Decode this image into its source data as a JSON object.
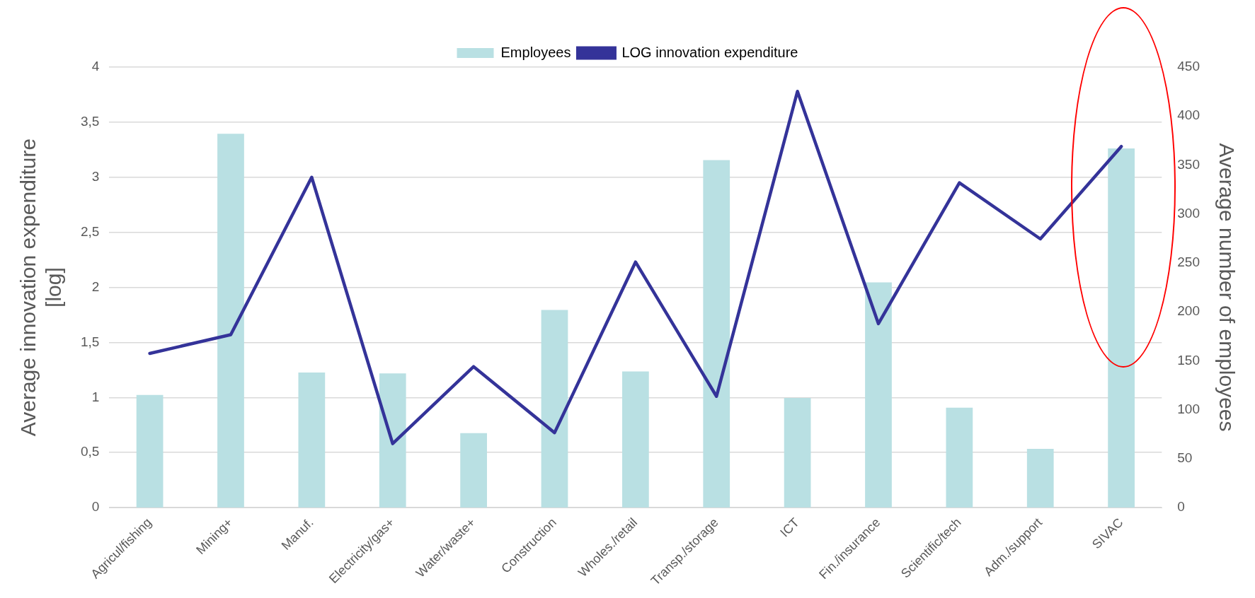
{
  "chart_data": {
    "type": "bar",
    "ylabel": "Average innovation expenditure [log]",
    "y2label": "Average number of employees",
    "categories": [
      "Agricul/fishing",
      "Mining+",
      "Manuf.",
      "Electricity/gas+",
      "Water/waste+",
      "Construction",
      "Wholes./retail",
      "Transp./storage",
      "ICT",
      "Fin./insurance",
      "Scientific/tech",
      "Adm./support",
      "SIVAC"
    ],
    "series": [
      {
        "name": "Employees",
        "axis": "y2",
        "color": "#b9e0e3",
        "values": [
          115,
          382,
          138,
          137,
          76,
          202,
          139,
          355,
          112,
          230,
          102,
          60,
          367
        ]
      },
      {
        "name": "LOG innovation expenditure",
        "type": "line",
        "color": "#343399",
        "values": [
          1.4,
          1.57,
          3.0,
          0.58,
          1.28,
          0.68,
          2.23,
          1.01,
          3.78,
          1.67,
          2.95,
          2.44,
          3.28
        ]
      }
    ],
    "ylim": [
      0,
      4
    ],
    "yticks": [
      0,
      {
        "value": 0.5,
        "label": "0,5"
      },
      1,
      {
        "value": 1.5,
        "label": "1,5"
      },
      2,
      {
        "value": 2.5,
        "label": "2,5"
      },
      3,
      {
        "value": 3.5,
        "label": "3,5"
      },
      4
    ],
    "y2lim": [
      0,
      450
    ],
    "y2ticks": [
      0,
      50,
      100,
      150,
      200,
      250,
      300,
      350,
      400,
      450
    ],
    "grid": "y",
    "legend": "top",
    "marker": "none"
  }
}
